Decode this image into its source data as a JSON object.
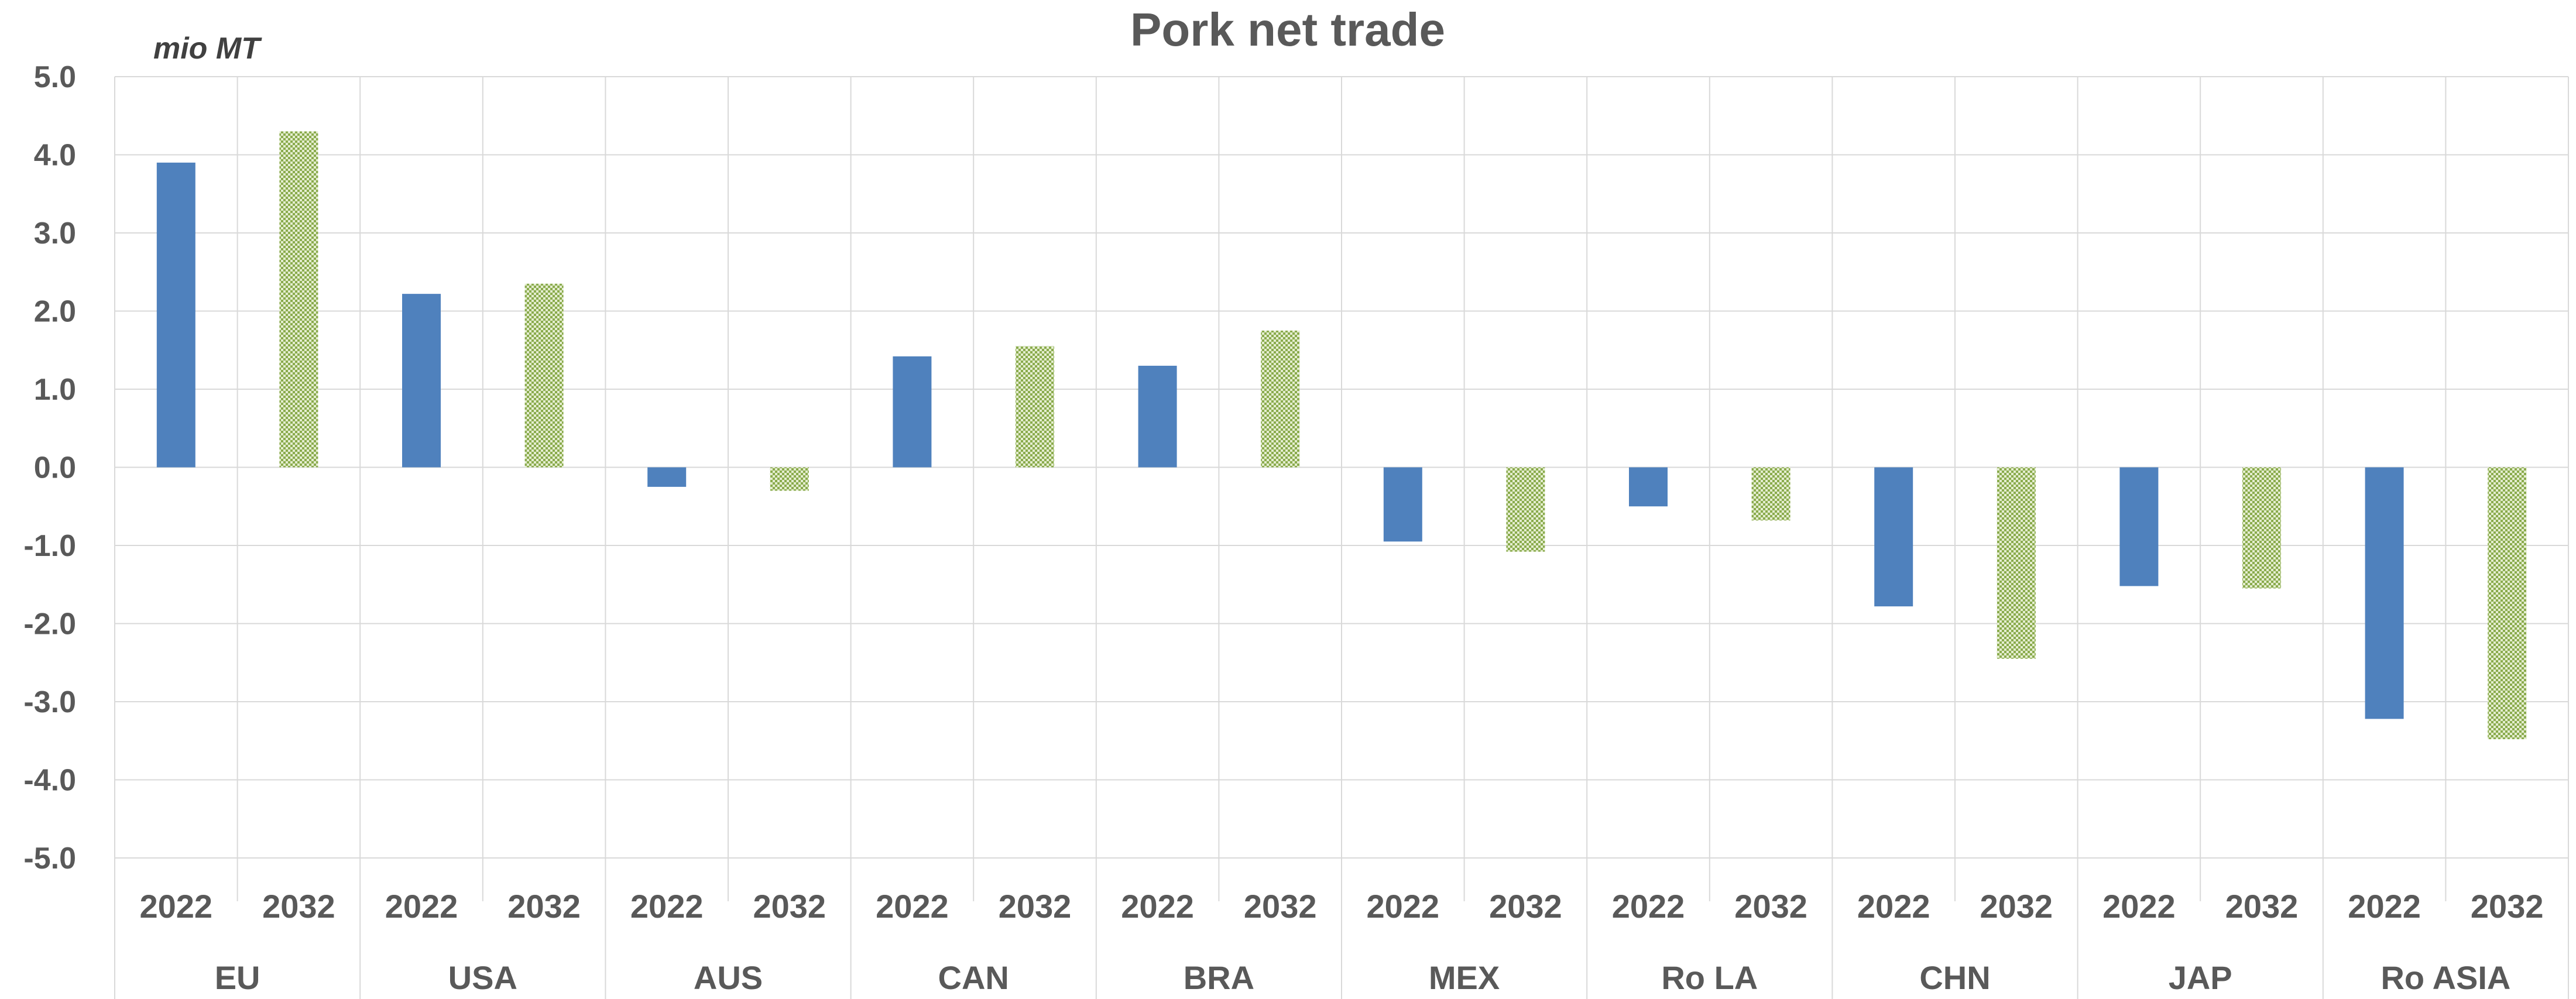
{
  "chart_data": {
    "type": "bar",
    "title": "Pork net trade",
    "unit_label": "mio MT",
    "ylim": [
      -5.0,
      5.0
    ],
    "yticks": [
      "5.0",
      "4.0",
      "3.0",
      "2.0",
      "1.0",
      "0.0",
      "-1.0",
      "-2.0",
      "-3.0",
      "-4.0",
      "-5.0"
    ],
    "ytick_values": [
      5,
      4,
      3,
      2,
      1,
      0,
      -1,
      -2,
      -3,
      -4,
      -5
    ],
    "grid": true,
    "regions": [
      "EU",
      "USA",
      "AUS",
      "CAN",
      "BRA",
      "MEX",
      "Ro LA",
      "CHN",
      "JAP",
      "Ro ASIA"
    ],
    "series": [
      {
        "year": "2022",
        "color": "#4f81bd",
        "pattern": "solid",
        "values": [
          3.9,
          2.22,
          -0.25,
          1.42,
          1.3,
          -0.95,
          -0.5,
          -1.78,
          -1.52,
          -3.22
        ]
      },
      {
        "year": "2032",
        "color": "#9bbb59",
        "pattern": "dotted",
        "values": [
          4.3,
          2.35,
          -0.3,
          1.55,
          1.75,
          -1.08,
          -0.68,
          -2.45,
          -1.55,
          -3.48
        ]
      }
    ]
  }
}
